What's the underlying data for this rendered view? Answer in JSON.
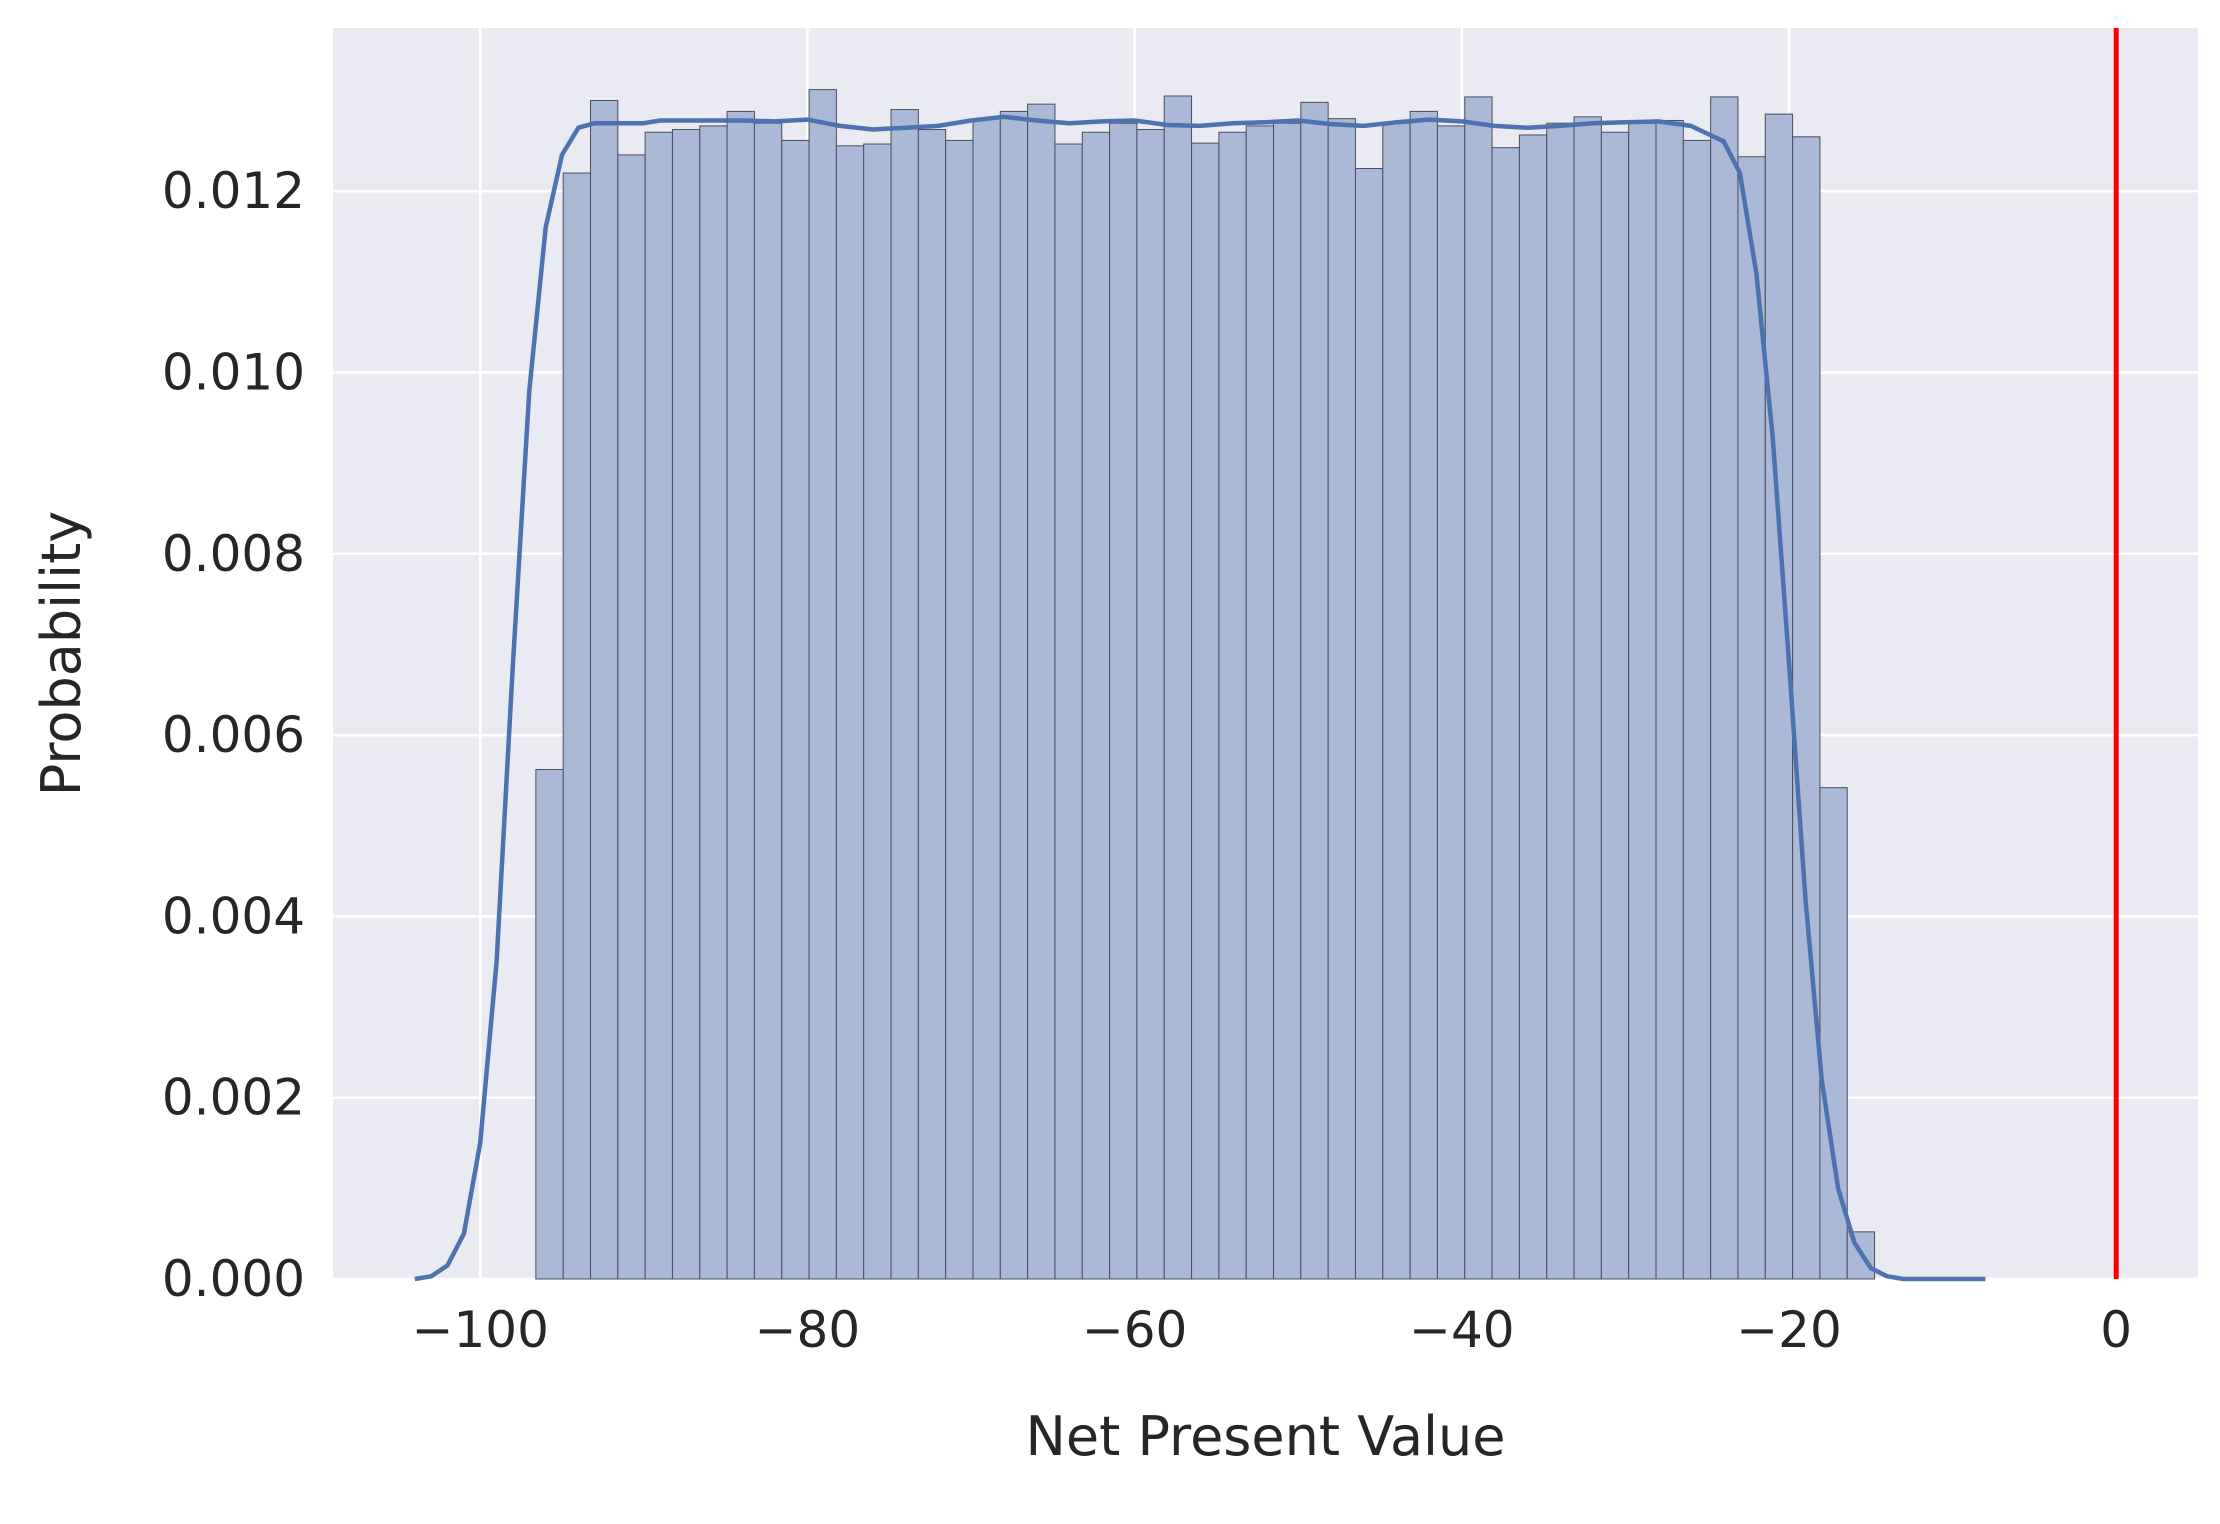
{
  "chart_data": {
    "type": "bar",
    "title": "",
    "xlabel": "Net Present Value",
    "ylabel": "Probability",
    "xlim": [
      -109,
      5
    ],
    "ylim": [
      0,
      0.0138
    ],
    "x_ticks": [
      -100,
      -80,
      -60,
      -40,
      -20,
      0
    ],
    "x_tick_labels": [
      "−100",
      "−80",
      "−60",
      "−40",
      "−20",
      "0"
    ],
    "y_ticks": [
      0,
      0.002,
      0.004,
      0.006,
      0.008,
      0.01,
      0.012
    ],
    "y_tick_labels": [
      "0.000",
      "0.002",
      "0.004",
      "0.006",
      "0.008",
      "0.010",
      "0.012"
    ],
    "grid": true,
    "bins": {
      "start": -96.6,
      "width": 1.67,
      "heights": [
        0.00562,
        0.0122,
        0.013,
        0.0124,
        0.01265,
        0.01268,
        0.01272,
        0.01288,
        0.01275,
        0.01256,
        0.01312,
        0.0125,
        0.01252,
        0.0129,
        0.01268,
        0.01256,
        0.0128,
        0.01288,
        0.01296,
        0.01252,
        0.01265,
        0.01275,
        0.01268,
        0.01305,
        0.01253,
        0.01265,
        0.01272,
        0.01275,
        0.01298,
        0.0128,
        0.01225,
        0.01275,
        0.01288,
        0.01272,
        0.01304,
        0.01248,
        0.01262,
        0.01275,
        0.01282,
        0.01265,
        0.01275,
        0.01278,
        0.01256,
        0.01304,
        0.01238,
        0.01285,
        0.0126,
        0.00542,
        0.00052
      ]
    },
    "kde": {
      "x": [
        -104,
        -103,
        -102,
        -101,
        -100,
        -99,
        -98,
        -97,
        -96,
        -95,
        -94,
        -93,
        -92,
        -91,
        -90,
        -89,
        -88,
        -86,
        -84,
        -82,
        -80,
        -78,
        -76,
        -74,
        -72,
        -70,
        -68,
        -66,
        -64,
        -62,
        -60,
        -58,
        -56,
        -54,
        -52,
        -50,
        -48,
        -46,
        -44,
        -42,
        -40,
        -38,
        -36,
        -34,
        -32,
        -30,
        -28,
        -26,
        -24,
        -23,
        -22,
        -21,
        -20,
        -19,
        -18,
        -17,
        -16,
        -15,
        -14,
        -13,
        -12,
        -11,
        -10,
        -9,
        -8
      ],
      "y": [
        0.0,
        3e-05,
        0.00015,
        0.0005,
        0.0015,
        0.0035,
        0.0068,
        0.0098,
        0.0116,
        0.0124,
        0.0127,
        0.01275,
        0.01275,
        0.01275,
        0.01275,
        0.01278,
        0.01278,
        0.01278,
        0.01278,
        0.01277,
        0.01279,
        0.01272,
        0.01268,
        0.0127,
        0.01272,
        0.01278,
        0.01282,
        0.01278,
        0.01275,
        0.01277,
        0.01278,
        0.01273,
        0.01272,
        0.01275,
        0.01276,
        0.01278,
        0.01274,
        0.01272,
        0.01276,
        0.01279,
        0.01277,
        0.01272,
        0.0127,
        0.01272,
        0.01275,
        0.01276,
        0.01277,
        0.01272,
        0.01255,
        0.0122,
        0.0111,
        0.0093,
        0.0068,
        0.0042,
        0.0022,
        0.001,
        0.0004,
        0.00012,
        3e-05,
        0.0,
        0.0,
        0.0,
        0.0,
        0.0,
        0.0
      ]
    },
    "reference_line": {
      "x": 0,
      "color": "#ff0000"
    },
    "colors": {
      "background": "#eaeaf2",
      "grid": "#ffffff",
      "bar_fill": "#a9b9d6",
      "bar_edge": "#4a4f5a",
      "kde": "#4c72b0"
    }
  }
}
